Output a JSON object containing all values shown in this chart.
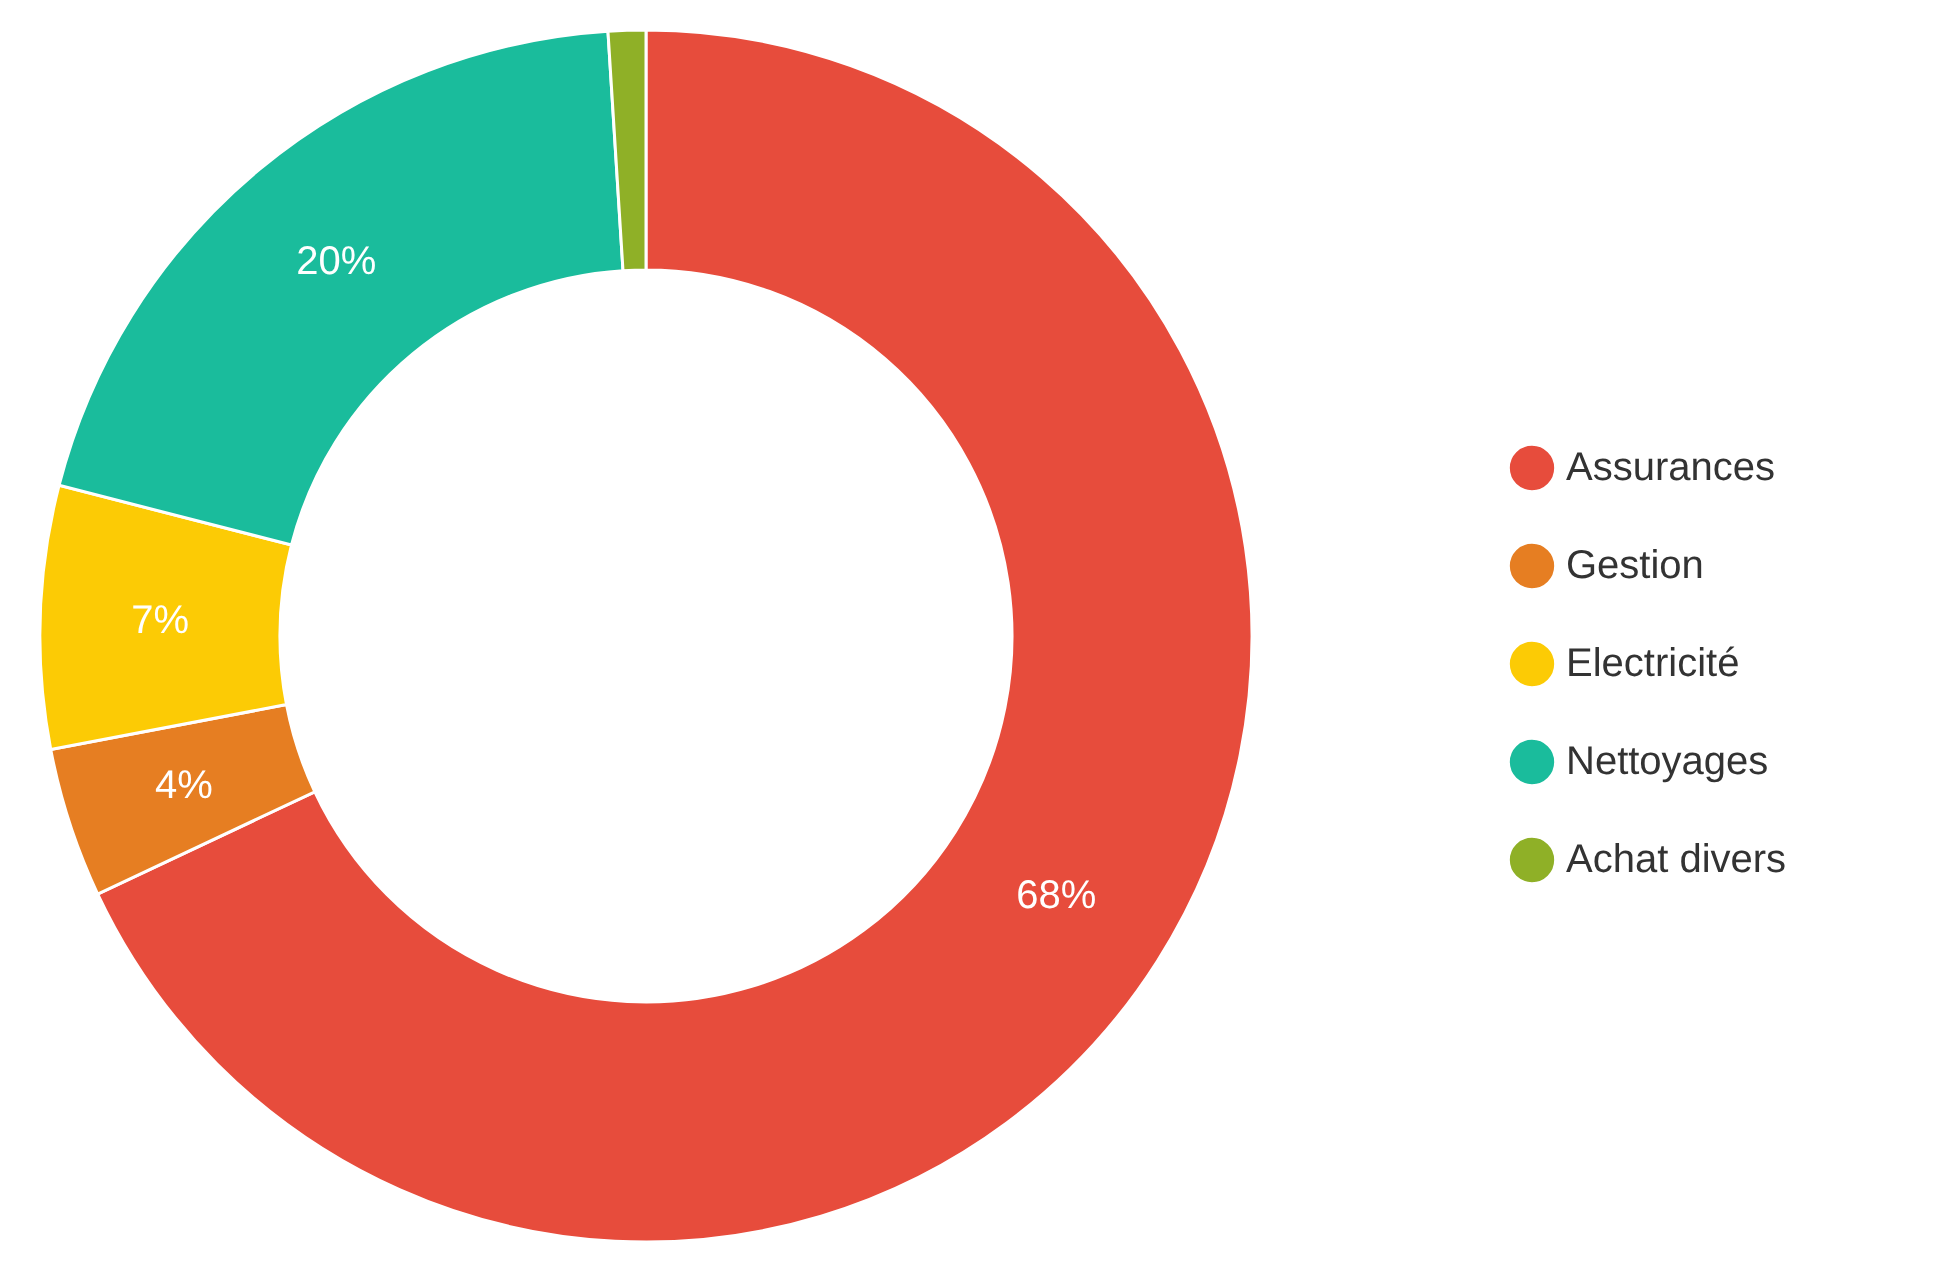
{
  "chart_data": {
    "type": "donut",
    "categories": [
      "Assurances",
      "Gestion",
      "Electricité",
      "Nettoyages",
      "Achat divers"
    ],
    "values": [
      68,
      4,
      7,
      20,
      1
    ],
    "colors": [
      "#e74c3c",
      "#e67e22",
      "#fccb05",
      "#1abc9c",
      "#8fb027"
    ],
    "value_labels": [
      "68%",
      "4%",
      "7%",
      "20%",
      null
    ],
    "legend": "right"
  }
}
